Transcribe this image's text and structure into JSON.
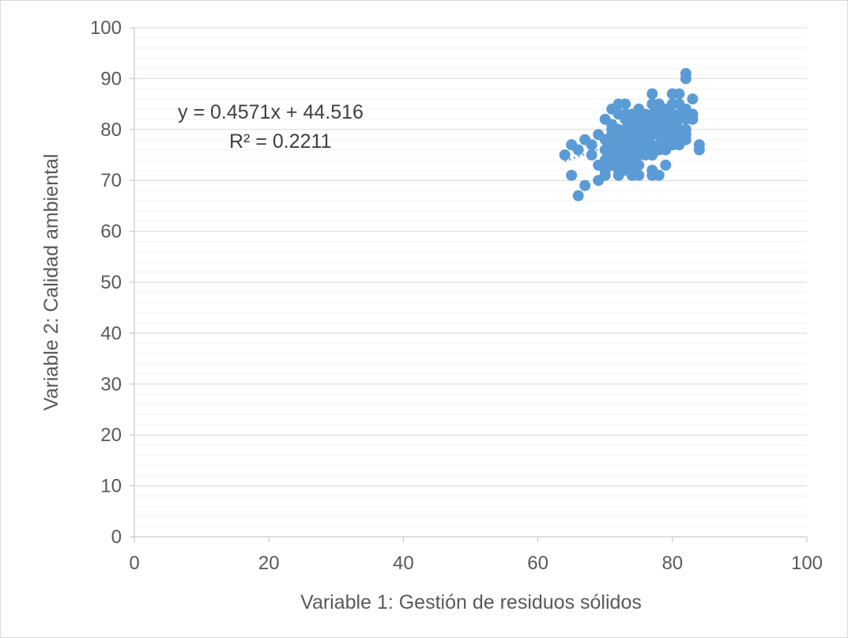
{
  "chart_data": {
    "type": "scatter",
    "title": "",
    "xlabel": "Variable 1: Gestión de residuos sólidos",
    "ylabel": "Variable 2: Calidad ambiental",
    "xlim": [
      0,
      100
    ],
    "ylim": [
      0,
      100
    ],
    "x_ticks": [
      "0",
      "20",
      "40",
      "60",
      "80",
      "100"
    ],
    "y_ticks": [
      "0",
      "10",
      "20",
      "30",
      "40",
      "50",
      "60",
      "70",
      "80",
      "90",
      "100"
    ],
    "grid": true,
    "legend": "none",
    "marker_color": "#5b9bd5",
    "trendline": {
      "type": "linear",
      "slope": 0.4571,
      "intercept": 44.516,
      "x_range": [
        64,
        84
      ],
      "equation_label": "y = 0.4571x + 44.516",
      "r2_label": "R² = 0.2211"
    },
    "points": [
      [
        64,
        75
      ],
      [
        65,
        77
      ],
      [
        65,
        71
      ],
      [
        66,
        76
      ],
      [
        66,
        67
      ],
      [
        67,
        78
      ],
      [
        67,
        69
      ],
      [
        68,
        75
      ],
      [
        68,
        77
      ],
      [
        69,
        73
      ],
      [
        69,
        79
      ],
      [
        69,
        70
      ],
      [
        70,
        82
      ],
      [
        70,
        76
      ],
      [
        70,
        72
      ],
      [
        70,
        74
      ],
      [
        70,
        78
      ],
      [
        70,
        71
      ],
      [
        71,
        84
      ],
      [
        71,
        80
      ],
      [
        71,
        77
      ],
      [
        71,
        75
      ],
      [
        71,
        73
      ],
      [
        71,
        79
      ],
      [
        71,
        81
      ],
      [
        72,
        85
      ],
      [
        72,
        83
      ],
      [
        72,
        78
      ],
      [
        72,
        76
      ],
      [
        72,
        74
      ],
      [
        72,
        72
      ],
      [
        72,
        80
      ],
      [
        72,
        71
      ],
      [
        73,
        85
      ],
      [
        73,
        82
      ],
      [
        73,
        80
      ],
      [
        73,
        79
      ],
      [
        73,
        77
      ],
      [
        73,
        75
      ],
      [
        73,
        73
      ],
      [
        73,
        83
      ],
      [
        73,
        72
      ],
      [
        74,
        83
      ],
      [
        74,
        81
      ],
      [
        74,
        78
      ],
      [
        74,
        76
      ],
      [
        74,
        74
      ],
      [
        74,
        72
      ],
      [
        74,
        79
      ],
      [
        74,
        71
      ],
      [
        75,
        84
      ],
      [
        75,
        82
      ],
      [
        75,
        80
      ],
      [
        75,
        77
      ],
      [
        75,
        75
      ],
      [
        75,
        73
      ],
      [
        75,
        71
      ],
      [
        75,
        79
      ],
      [
        76,
        83
      ],
      [
        76,
        81
      ],
      [
        76,
        79
      ],
      [
        76,
        77
      ],
      [
        76,
        75
      ],
      [
        76,
        78
      ],
      [
        76,
        82
      ],
      [
        76,
        76
      ],
      [
        77,
        87
      ],
      [
        77,
        85
      ],
      [
        77,
        83
      ],
      [
        77,
        81
      ],
      [
        77,
        79
      ],
      [
        77,
        77
      ],
      [
        77,
        75
      ],
      [
        77,
        72
      ],
      [
        77,
        71
      ],
      [
        77,
        80
      ],
      [
        77,
        82
      ],
      [
        78,
        85
      ],
      [
        78,
        83
      ],
      [
        78,
        81
      ],
      [
        78,
        79
      ],
      [
        78,
        77
      ],
      [
        78,
        76
      ],
      [
        78,
        71
      ],
      [
        78,
        84
      ],
      [
        78,
        80
      ],
      [
        79,
        84
      ],
      [
        79,
        82
      ],
      [
        79,
        80
      ],
      [
        79,
        78
      ],
      [
        79,
        76
      ],
      [
        79,
        73
      ],
      [
        79,
        81
      ],
      [
        80,
        87
      ],
      [
        80,
        85
      ],
      [
        80,
        83
      ],
      [
        80,
        81
      ],
      [
        80,
        79
      ],
      [
        80,
        77
      ],
      [
        80,
        82
      ],
      [
        80,
        80
      ],
      [
        81,
        87
      ],
      [
        81,
        85
      ],
      [
        81,
        83
      ],
      [
        81,
        80
      ],
      [
        81,
        78
      ],
      [
        81,
        77
      ],
      [
        81,
        82
      ],
      [
        82,
        91
      ],
      [
        82,
        90
      ],
      [
        82,
        84
      ],
      [
        82,
        82
      ],
      [
        82,
        80
      ],
      [
        82,
        79
      ],
      [
        82,
        78
      ],
      [
        82,
        83
      ],
      [
        83,
        86
      ],
      [
        83,
        83
      ],
      [
        83,
        82
      ],
      [
        84,
        77
      ],
      [
        84,
        76
      ]
    ]
  }
}
